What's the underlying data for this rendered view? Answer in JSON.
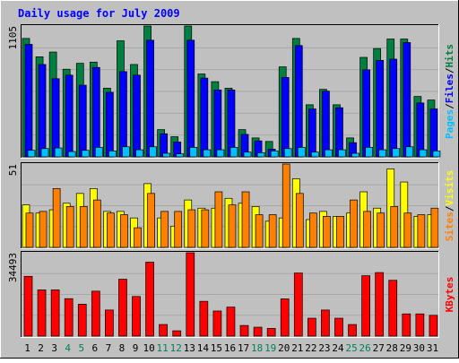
{
  "title": "Daily usage for July 2009",
  "colors": {
    "background": "#c0c0c0",
    "title": "#0000ff",
    "hits": "#008040",
    "files": "#0000ff",
    "pages": "#00c0ff",
    "visits": "#ffff00",
    "sites": "#ff8000",
    "kbytes": "#ff0000",
    "weekend_label": "#00805c",
    "weekday_label": "#000000"
  },
  "chart_data": [
    {
      "type": "bar",
      "panel": "hits-files-pages",
      "y_max_label": "1105",
      "ylim": [
        0,
        1105
      ],
      "right_labels": [
        "Pages",
        "Files",
        "Hits"
      ],
      "categories": [
        "1",
        "2",
        "3",
        "4",
        "5",
        "6",
        "7",
        "8",
        "9",
        "10",
        "11",
        "12",
        "13",
        "14",
        "15",
        "16",
        "17",
        "18",
        "19",
        "20",
        "21",
        "22",
        "23",
        "24",
        "25",
        "26",
        "27",
        "28",
        "29",
        "30",
        "31"
      ],
      "series": [
        {
          "name": "Hits",
          "values": [
            1000,
            845,
            885,
            740,
            790,
            800,
            580,
            980,
            780,
            1105,
            230,
            170,
            1105,
            700,
            635,
            580,
            230,
            160,
            130,
            760,
            1000,
            440,
            570,
            440,
            160,
            840,
            915,
            995,
            995,
            510,
            480
          ]
        },
        {
          "name": "Files",
          "values": [
            950,
            780,
            660,
            690,
            605,
            755,
            545,
            720,
            690,
            985,
            195,
            125,
            985,
            665,
            565,
            565,
            190,
            135,
            65,
            670,
            940,
            405,
            555,
            415,
            120,
            735,
            815,
            825,
            965,
            455,
            405
          ]
        },
        {
          "name": "Pages",
          "values": [
            55,
            70,
            75,
            45,
            55,
            80,
            50,
            85,
            60,
            85,
            30,
            25,
            80,
            60,
            60,
            80,
            40,
            35,
            50,
            70,
            80,
            40,
            60,
            60,
            30,
            80,
            60,
            70,
            85,
            60,
            50
          ]
        }
      ]
    },
    {
      "type": "bar",
      "panel": "visits-sites",
      "y_max_label": "51",
      "ylim": [
        0,
        51
      ],
      "right_labels": [
        "Sites",
        "Visits"
      ],
      "categories": [
        "1",
        "2",
        "3",
        "4",
        "5",
        "6",
        "7",
        "8",
        "9",
        "10",
        "11",
        "12",
        "13",
        "14",
        "15",
        "16",
        "17",
        "18",
        "19",
        "20",
        "21",
        "22",
        "23",
        "24",
        "25",
        "26",
        "27",
        "28",
        "29",
        "30",
        "31"
      ],
      "series": [
        {
          "name": "Visits",
          "values": [
            26,
            21,
            23,
            27,
            33,
            36,
            22,
            22,
            18,
            39,
            18,
            13,
            29,
            24,
            24,
            30,
            27,
            25,
            16,
            18,
            42,
            17,
            22,
            19,
            21,
            34,
            24,
            48,
            40,
            19,
            20
          ]
        },
        {
          "name": "Sites",
          "values": [
            21,
            22,
            36,
            25,
            25,
            29,
            21,
            20,
            12,
            33,
            22,
            22,
            23,
            23,
            34,
            26,
            34,
            20,
            20,
            51,
            33,
            21,
            19,
            19,
            29,
            22,
            21,
            25,
            21,
            20,
            24
          ]
        }
      ]
    },
    {
      "type": "bar",
      "panel": "kbytes",
      "y_max_label": "34493",
      "ylim": [
        0,
        34493
      ],
      "right_labels": [
        "KBytes"
      ],
      "categories": [
        "1",
        "2",
        "3",
        "4",
        "5",
        "6",
        "7",
        "8",
        "9",
        "10",
        "11",
        "12",
        "13",
        "14",
        "15",
        "16",
        "17",
        "18",
        "19",
        "20",
        "21",
        "22",
        "23",
        "24",
        "25",
        "26",
        "27",
        "28",
        "29",
        "30",
        "31"
      ],
      "series": [
        {
          "name": "KBytes",
          "values": [
            24740,
            19120,
            19120,
            15500,
            13200,
            18600,
            10800,
            23540,
            16400,
            30600,
            4800,
            2200,
            34493,
            14400,
            10400,
            12000,
            4400,
            3700,
            3200,
            15400,
            26100,
            7400,
            10800,
            7400,
            4800,
            25000,
            26300,
            23100,
            9200,
            9200,
            8600
          ]
        }
      ]
    }
  ],
  "x_labels": [
    {
      "text": "1",
      "weekend": false
    },
    {
      "text": "2",
      "weekend": false
    },
    {
      "text": "3",
      "weekend": false
    },
    {
      "text": "4",
      "weekend": true
    },
    {
      "text": "5",
      "weekend": true
    },
    {
      "text": "6",
      "weekend": false
    },
    {
      "text": "7",
      "weekend": false
    },
    {
      "text": "8",
      "weekend": false
    },
    {
      "text": "9",
      "weekend": false
    },
    {
      "text": "10",
      "weekend": false
    },
    {
      "text": "11",
      "weekend": true
    },
    {
      "text": "12",
      "weekend": true
    },
    {
      "text": "13",
      "weekend": false
    },
    {
      "text": "14",
      "weekend": false
    },
    {
      "text": "15",
      "weekend": false
    },
    {
      "text": "16",
      "weekend": false
    },
    {
      "text": "17",
      "weekend": false
    },
    {
      "text": "18",
      "weekend": true
    },
    {
      "text": "19",
      "weekend": true
    },
    {
      "text": "20",
      "weekend": false
    },
    {
      "text": "21",
      "weekend": false
    },
    {
      "text": "22",
      "weekend": false
    },
    {
      "text": "23",
      "weekend": false
    },
    {
      "text": "24",
      "weekend": false
    },
    {
      "text": "25",
      "weekend": true
    },
    {
      "text": "26",
      "weekend": true
    },
    {
      "text": "27",
      "weekend": false
    },
    {
      "text": "28",
      "weekend": false
    },
    {
      "text": "29",
      "weekend": false
    },
    {
      "text": "30",
      "weekend": false
    },
    {
      "text": "31",
      "weekend": false
    }
  ]
}
